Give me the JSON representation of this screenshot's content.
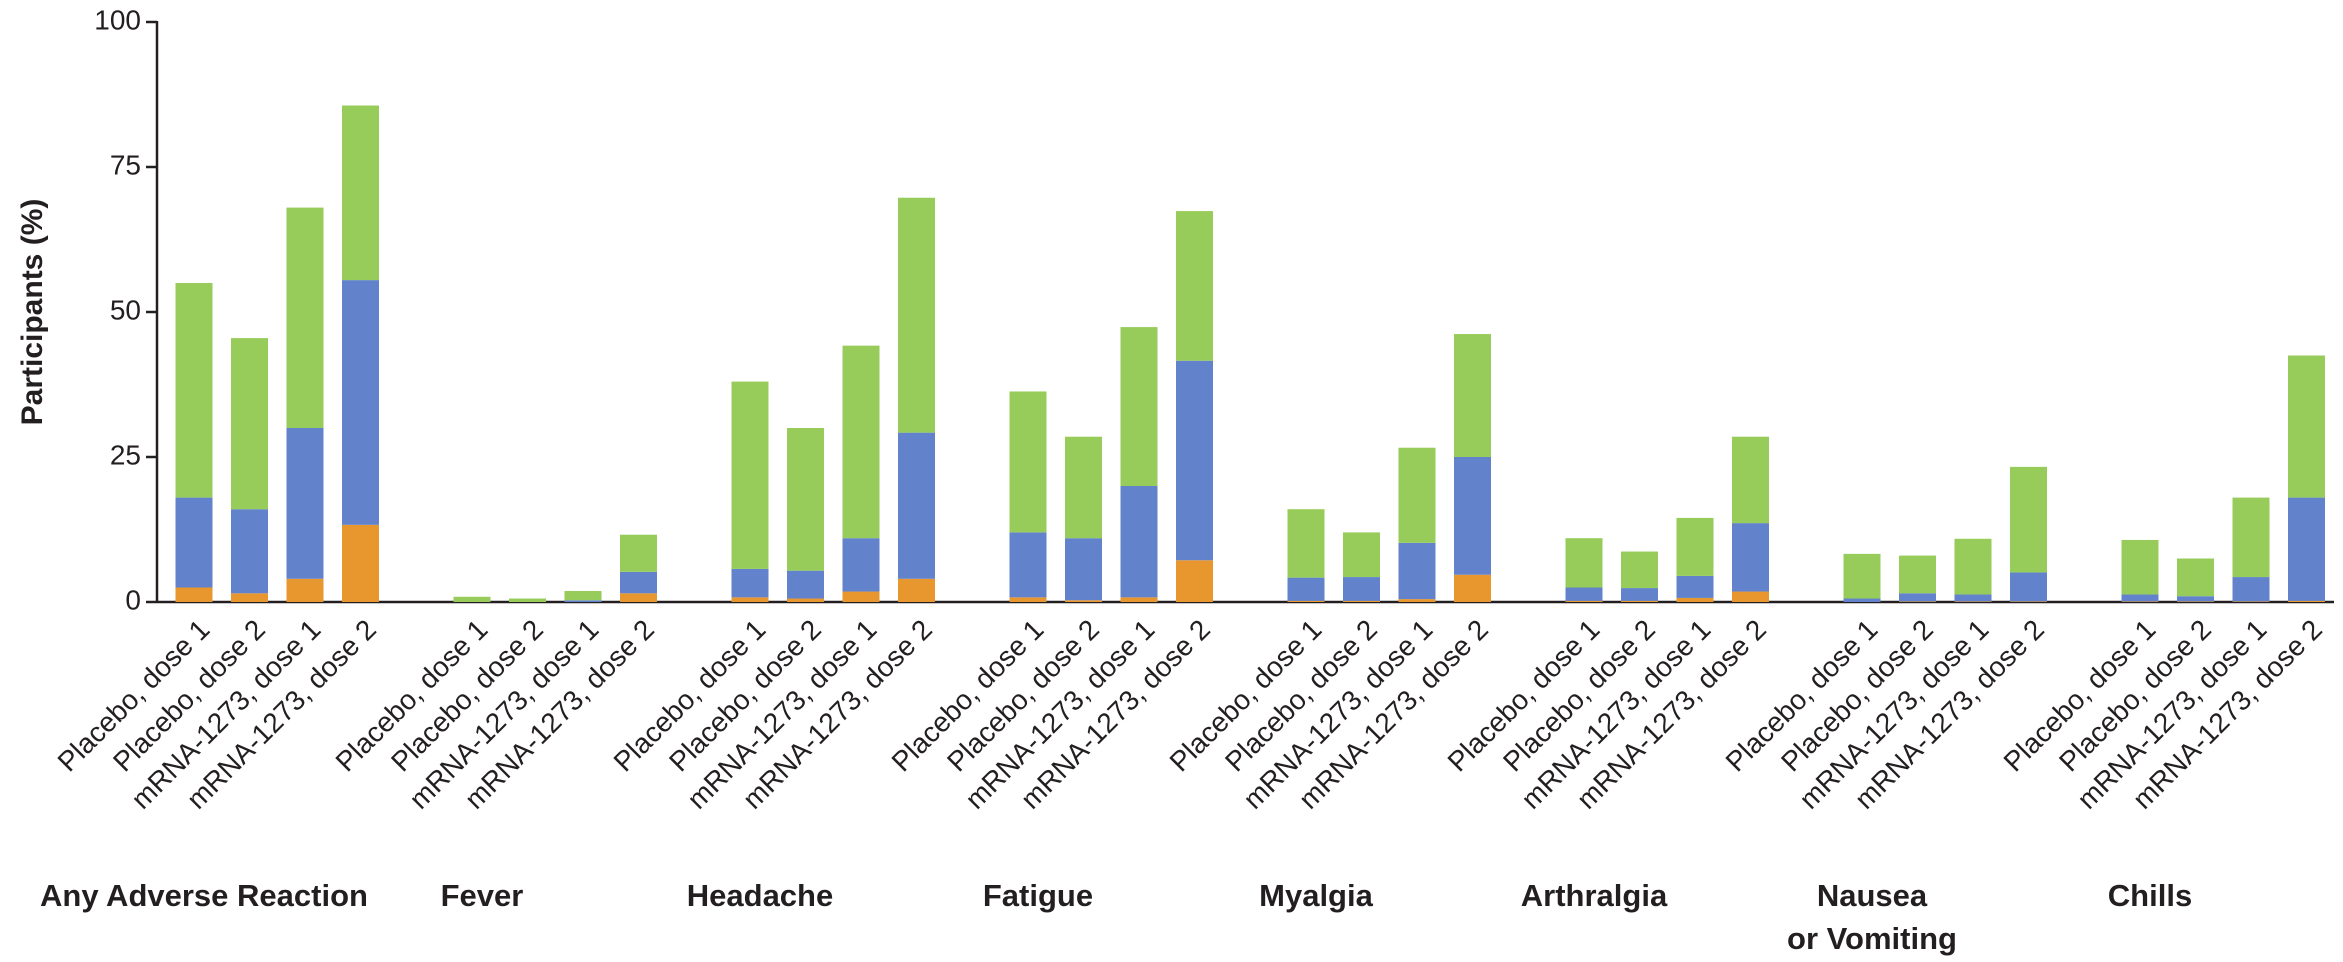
{
  "chart_data": {
    "type": "stacked_bar",
    "y_label": "Participants (%)",
    "ylim": [
      0,
      100
    ],
    "yticks": [
      0,
      25,
      50,
      75,
      100
    ],
    "groups": [
      [
        "Any Adverse Reaction"
      ],
      [
        "Fever"
      ],
      [
        "Headache"
      ],
      [
        "Fatigue"
      ],
      [
        "Myalgia"
      ],
      [
        "Arthralgia"
      ],
      [
        "Nausea",
        "or Vomiting"
      ],
      [
        "Chills"
      ]
    ],
    "categories": [
      "Placebo, dose 1",
      "Placebo, dose 2",
      "mRNA-1273, dose 1",
      "mRNA-1273, dose 2",
      "Placebo, dose 1",
      "Placebo, dose 2",
      "mRNA-1273, dose 1",
      "mRNA-1273, dose 2",
      "Placebo, dose 1",
      "Placebo, dose 2",
      "mRNA-1273, dose 1",
      "mRNA-1273, dose 2",
      "Placebo, dose 1",
      "Placebo, dose 2",
      "mRNA-1273, dose 1",
      "mRNA-1273, dose 2",
      "Placebo, dose 1",
      "Placebo, dose 2",
      "mRNA-1273, dose 1",
      "mRNA-1273, dose 2",
      "Placebo, dose 1",
      "Placebo, dose 2",
      "mRNA-1273, dose 1",
      "mRNA-1273, dose 2",
      "Placebo, dose 1",
      "Placebo, dose 2",
      "mRNA-1273, dose 1",
      "mRNA-1273, dose 2",
      "Placebo, dose 1",
      "Placebo, dose 2",
      "mRNA-1273, dose 1",
      "mRNA-1273, dose 2"
    ],
    "series": [
      {
        "color": "#e8962e",
        "values": [
          2.5,
          1.5,
          4,
          13.3,
          0,
          0,
          0,
          1.5,
          0.8,
          0.6,
          1.8,
          4,
          0.8,
          0.3,
          0.8,
          7.2,
          0.2,
          0.2,
          0.5,
          4.7,
          0.2,
          0.2,
          0.7,
          1.8,
          0,
          0.1,
          0.1,
          0.1,
          0.1,
          0.1,
          0.1,
          0.2
        ]
      },
      {
        "color": "#6283cb",
        "values": [
          15.5,
          14.5,
          26,
          42.2,
          0,
          0,
          0.3,
          3.7,
          4.9,
          4.8,
          9.2,
          25.2,
          11.2,
          10.7,
          19.2,
          34.4,
          4,
          4.1,
          9.7,
          20.3,
          2.3,
          2.2,
          3.8,
          11.8,
          0.6,
          1.4,
          1.2,
          5,
          1.2,
          0.9,
          4.2,
          17.8
        ]
      },
      {
        "color": "#97cc5a",
        "values": [
          37,
          29.5,
          38,
          30.1,
          0.9,
          0.6,
          1.6,
          6.4,
          32.3,
          24.6,
          33.2,
          40.5,
          24.3,
          17.5,
          27.4,
          25.8,
          11.8,
          7.7,
          16.4,
          21.2,
          8.5,
          6.3,
          10,
          14.9,
          7.7,
          6.5,
          9.6,
          18.2,
          9.4,
          6.5,
          13.7,
          24.5
        ]
      }
    ]
  }
}
